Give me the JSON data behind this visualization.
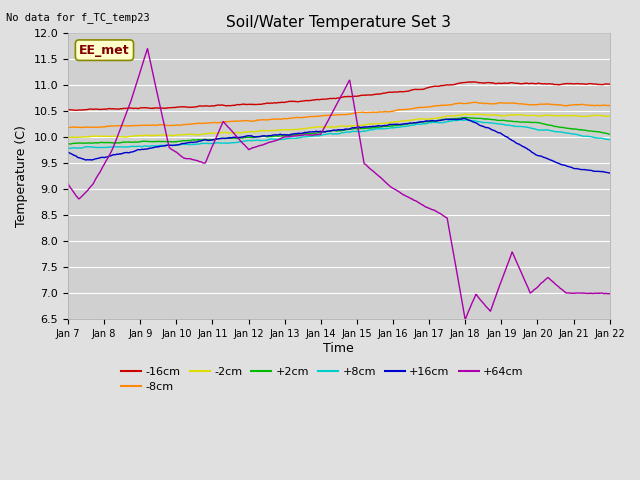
{
  "title": "Soil/Water Temperature Set 3",
  "xlabel": "Time",
  "ylabel": "Temperature (C)",
  "ylim": [
    6.5,
    12.0
  ],
  "note": "No data for f_TC_temp23",
  "annotation_label": "EE_met",
  "background_color": "#e0e0e0",
  "plot_bg_color": "#d0d0d0",
  "series_colors": [
    "#cc0000",
    "#ff8800",
    "#dddd00",
    "#00bb00",
    "#00cccc",
    "#0000cc",
    "#aa00aa"
  ],
  "series_labels": [
    "-16cm",
    "-8cm",
    "-2cm",
    "+2cm",
    "+8cm",
    "+16cm",
    "+64cm"
  ],
  "xtick_labels": [
    "Jan 7",
    "Jan 8",
    "Jan 9",
    "Jan 10",
    "Jan 11",
    "Jan 12",
    "Jan 13",
    "Jan 14",
    "Jan 15",
    "Jan 16",
    "Jan 17",
    "Jan 18",
    "Jan 19",
    "Jan 20",
    "Jan 21",
    "Jan 22"
  ],
  "ytick_values": [
    6.5,
    7.0,
    7.5,
    8.0,
    8.5,
    9.0,
    9.5,
    10.0,
    10.5,
    11.0,
    11.5,
    12.0
  ],
  "n_points": 1500
}
